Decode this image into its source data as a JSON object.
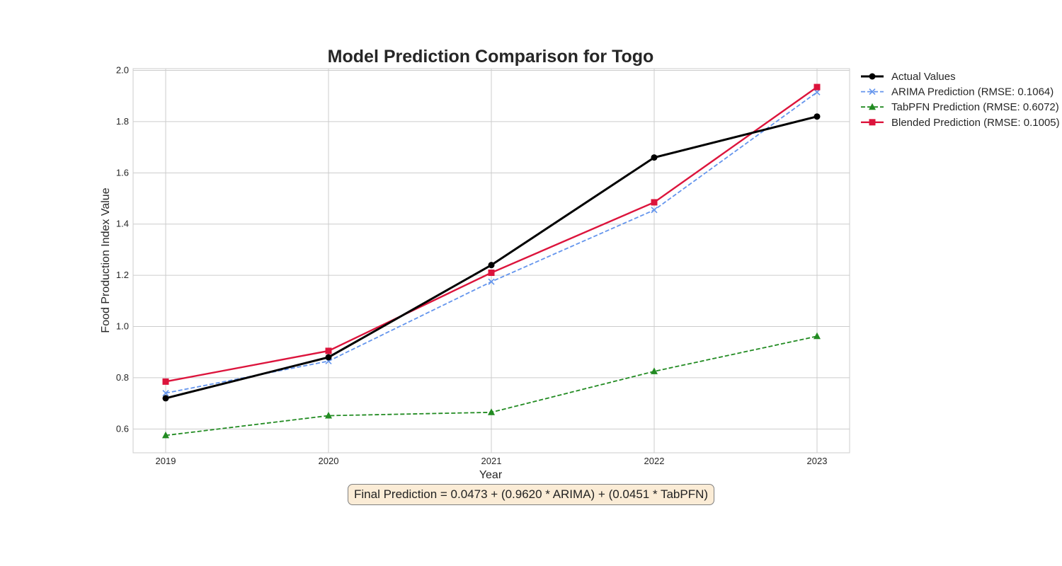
{
  "chart_data": {
    "type": "line",
    "title": "Model Prediction Comparison for Togo",
    "xlabel": "Year",
    "ylabel": "Food Production Index Value",
    "x": [
      2019,
      2020,
      2021,
      2022,
      2023
    ],
    "xlim": [
      2018.8,
      2023.2
    ],
    "ylim": [
      0.507,
      2.007
    ],
    "yticks": [
      0.6,
      0.8,
      1.0,
      1.2,
      1.4,
      1.6,
      1.8,
      2.0
    ],
    "ytick_labels": [
      "0.6",
      "0.8",
      "1.0",
      "1.2",
      "1.4",
      "1.6",
      "1.8",
      "2.0"
    ],
    "xtick_labels": [
      "2019",
      "2020",
      "2021",
      "2022",
      "2023"
    ],
    "grid": true,
    "legend_position": "outside-top-right",
    "series": [
      {
        "name": "Actual Values",
        "values": [
          0.72,
          0.88,
          1.24,
          1.66,
          1.82
        ],
        "color": "#000000",
        "dash": "solid",
        "marker": "circle"
      },
      {
        "name": "ARIMA Prediction (RMSE: 0.1064)",
        "values": [
          0.74,
          0.865,
          1.175,
          1.455,
          1.915
        ],
        "color": "#6495ed",
        "dash": "dashed",
        "marker": "x"
      },
      {
        "name": "TabPFN Prediction (RMSE: 0.6072)",
        "values": [
          0.575,
          0.652,
          0.665,
          0.825,
          0.962
        ],
        "color": "#228b22",
        "dash": "dashed",
        "marker": "triangle"
      },
      {
        "name": "Blended Prediction (RMSE: 0.1005)",
        "values": [
          0.785,
          0.905,
          1.21,
          1.485,
          1.935
        ],
        "color": "#dc143c",
        "dash": "solid",
        "marker": "square"
      }
    ],
    "annotation": "Final Prediction = 0.0473 + (0.9620 * ARIMA) + (0.0451 * TabPFN)"
  }
}
